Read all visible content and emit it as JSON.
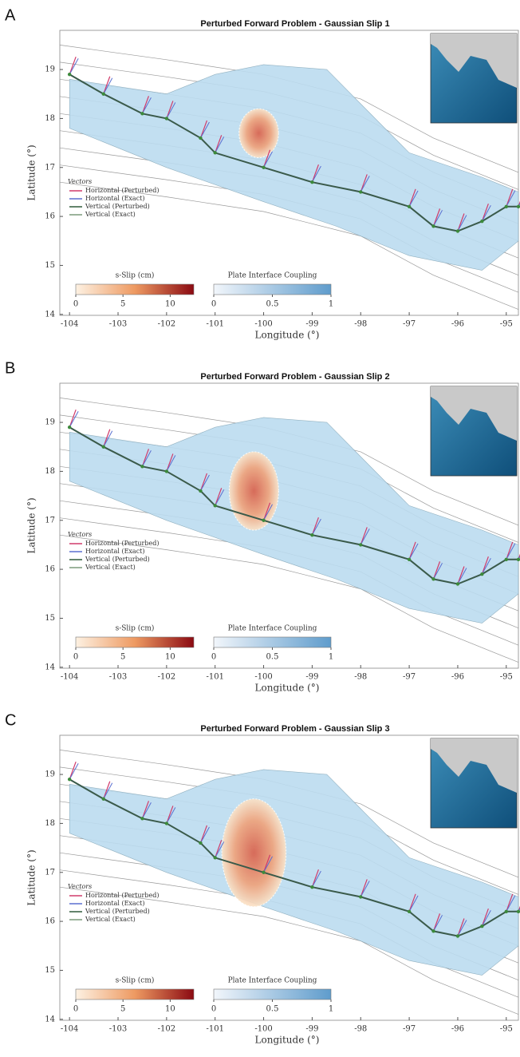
{
  "panels": [
    {
      "label": "A",
      "title": "Perturbed Forward Problem - Gaussian Slip 1",
      "xlabel": "Longitude (°)",
      "ylabel": "Latitude (°)",
      "xlim": [
        -104.2,
        -94.75
      ],
      "ylim": [
        13.98,
        19.8
      ],
      "xticks": [
        -104,
        -103,
        -102,
        -101,
        -100,
        -99,
        -98,
        -97,
        -96,
        -95
      ],
      "yticks": [
        14,
        15,
        16,
        17,
        18,
        19
      ],
      "legend": {
        "title": "Vectors",
        "entries": [
          "Horizontal (Perturbed)",
          "Horizontal (Exact)",
          "Vertical (Perturbed)",
          "Vertical (Exact)"
        ]
      },
      "slip_colorbar": {
        "label": "s-Slip (cm)",
        "lim": [
          0,
          12.5
        ],
        "ticks": [
          0,
          5,
          10
        ]
      },
      "coupling_colorbar": {
        "label": "Plate Interface Coupling",
        "lim": [
          0,
          1
        ],
        "ticks": [
          0,
          0.5,
          1
        ]
      }
    },
    {
      "label": "B",
      "title": "Perturbed Forward Problem - Gaussian Slip 2",
      "xlabel": "Longitude (°)",
      "ylabel": "Latitude (°)",
      "xlim": [
        -104.2,
        -94.75
      ],
      "ylim": [
        13.98,
        19.8
      ],
      "xticks": [
        -104,
        -103,
        -102,
        -101,
        -100,
        -99,
        -98,
        -97,
        -96,
        -95
      ],
      "yticks": [
        14,
        15,
        16,
        17,
        18,
        19
      ],
      "legend": {
        "title": "Vectors",
        "entries": [
          "Horizontal (Perturbed)",
          "Horizontal (Exact)",
          "Vertical (Perturbed)",
          "Vertical (Exact)"
        ]
      },
      "slip_colorbar": {
        "label": "s-Slip (cm)",
        "lim": [
          0,
          12.5
        ],
        "ticks": [
          0,
          5,
          10
        ]
      },
      "coupling_colorbar": {
        "label": "Plate Interface Coupling",
        "lim": [
          0,
          1
        ],
        "ticks": [
          0,
          0.5,
          1
        ]
      }
    },
    {
      "label": "C",
      "title": "Perturbed Forward Problem - Gaussian Slip 3",
      "xlabel": "Longitude (°)",
      "ylabel": "Latitude (°)",
      "xlim": [
        -104.2,
        -94.75
      ],
      "ylim": [
        13.98,
        19.8
      ],
      "xticks": [
        -104,
        -103,
        -102,
        -101,
        -100,
        -99,
        -98,
        -97,
        -96,
        -95
      ],
      "yticks": [
        14,
        15,
        16,
        17,
        18,
        19
      ],
      "legend": {
        "title": "Vectors",
        "entries": [
          "Horizontal (Perturbed)",
          "Horizontal (Exact)",
          "Vertical (Perturbed)",
          "Vertical (Exact)"
        ]
      },
      "slip_colorbar": {
        "label": "s-Slip (cm)",
        "lim": [
          0,
          12.5
        ],
        "ticks": [
          0,
          5,
          10
        ]
      },
      "coupling_colorbar": {
        "label": "Plate Interface Coupling",
        "lim": [
          0,
          1
        ],
        "ticks": [
          0,
          0.5,
          1
        ]
      }
    }
  ]
}
